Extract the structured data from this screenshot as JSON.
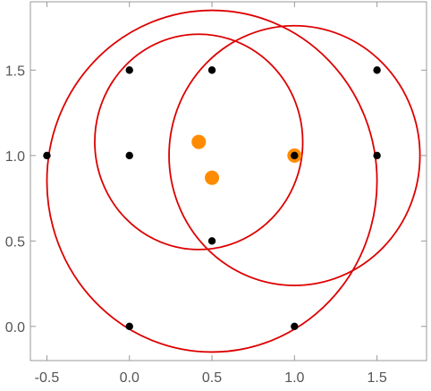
{
  "chart_data": {
    "type": "scatter",
    "title": "",
    "xlabel": "",
    "ylabel": "",
    "xlim": [
      -0.6,
      1.8
    ],
    "ylim": [
      -0.2,
      1.9
    ],
    "grid": false,
    "x_ticks": [
      -0.5,
      0.0,
      0.5,
      1.0,
      1.5
    ],
    "x_tick_labels": [
      "-0.5",
      "0.0",
      "0.5",
      "1.0",
      "1.5"
    ],
    "y_ticks": [
      0.0,
      0.5,
      1.0,
      1.5
    ],
    "y_tick_labels": [
      "0.0",
      "0.5",
      "1.0",
      "1.5"
    ],
    "series": [
      {
        "kind": "points",
        "color": "#000000",
        "points": [
          [
            -0.5,
            1.0
          ],
          [
            0.0,
            1.5
          ],
          [
            0.0,
            1.0
          ],
          [
            0.5,
            1.5
          ],
          [
            1.0,
            1.0
          ],
          [
            1.5,
            1.5
          ],
          [
            1.5,
            1.0
          ],
          [
            0.5,
            0.5
          ],
          [
            0.0,
            0.0
          ],
          [
            1.0,
            0.0
          ]
        ]
      },
      {
        "kind": "points",
        "color": "#ff8c00",
        "points": [
          [
            0.42,
            1.08
          ],
          [
            0.5,
            0.87
          ],
          [
            1.0,
            1.0
          ]
        ]
      },
      {
        "kind": "circles",
        "color": "#dd0000",
        "circles": [
          {
            "cx": 0.5,
            "cy": 0.85,
            "r": 1.0
          },
          {
            "cx": 0.42,
            "cy": 1.08,
            "r": 0.63
          },
          {
            "cx": 1.0,
            "cy": 1.0,
            "r": 0.76
          }
        ]
      }
    ]
  }
}
